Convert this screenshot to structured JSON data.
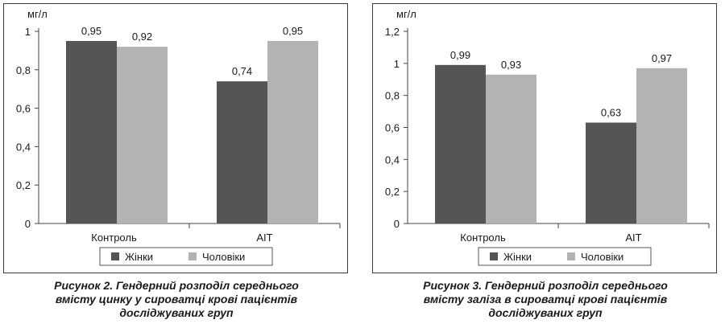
{
  "figures": [
    {
      "caption_lines": [
        "Рисунок 2. Гендерний розподіл середнього",
        "вмісту цинку у сироватці крові пацієнтів",
        "досліджуваних груп"
      ]
    },
    {
      "caption_lines": [
        "Рисунок 3. Гендерний розподіл середнього",
        "вмісту заліза в сироватці крові пацієнтів",
        "досліджуваних груп"
      ]
    }
  ],
  "chart_data": [
    {
      "type": "bar",
      "title": "",
      "ylabel": "мг/л",
      "xlabel": "",
      "categories": [
        "Контроль",
        "AIT"
      ],
      "ylim": [
        0,
        1
      ],
      "yticks": [
        0,
        0.2,
        0.4,
        0.6,
        0.8,
        1
      ],
      "ytick_labels": [
        "0",
        "0,2",
        "0,4",
        "0,6",
        "0,8",
        "1"
      ],
      "series": [
        {
          "name": "Жінки",
          "color": "#555555",
          "values": [
            0.95,
            0.74
          ],
          "labels": [
            "0,95",
            "0,74"
          ]
        },
        {
          "name": "Чоловіки",
          "color": "#b3b3b3",
          "values": [
            0.92,
            0.95
          ],
          "labels": [
            "0,92",
            "0,95"
          ]
        }
      ],
      "legend": "bottom",
      "grid": false
    },
    {
      "type": "bar",
      "title": "",
      "ylabel": "мг/л",
      "xlabel": "",
      "categories": [
        "Контроль",
        "AIT"
      ],
      "ylim": [
        0,
        1.2
      ],
      "yticks": [
        0,
        0.2,
        0.4,
        0.6,
        0.8,
        1,
        1.2
      ],
      "ytick_labels": [
        "0",
        "0,2",
        "0,4",
        "0,6",
        "0,8",
        "1",
        "1,2"
      ],
      "series": [
        {
          "name": "Жінки",
          "color": "#555555",
          "values": [
            0.99,
            0.63
          ],
          "labels": [
            "0,99",
            "0,63"
          ]
        },
        {
          "name": "Чоловіки",
          "color": "#b3b3b3",
          "values": [
            0.93,
            0.97
          ],
          "labels": [
            "0,93",
            "0,97"
          ]
        }
      ],
      "legend": "bottom",
      "grid": false
    }
  ]
}
